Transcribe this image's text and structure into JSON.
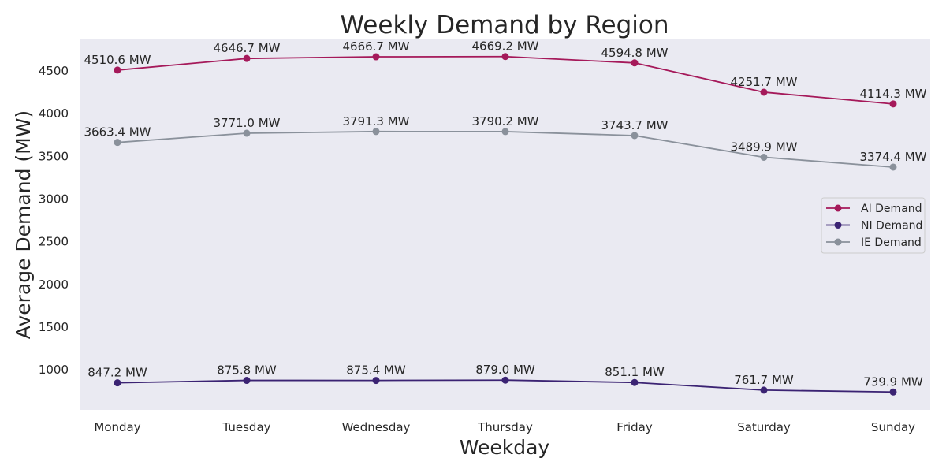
{
  "chart_data": {
    "type": "line",
    "title": "Weekly Demand by Region",
    "xlabel": "Weekday",
    "ylabel": "Average Demand (MW)",
    "categories": [
      "Monday",
      "Tuesday",
      "Wednesday",
      "Thursday",
      "Friday",
      "Saturday",
      "Sunday"
    ],
    "yticks": [
      1000,
      1500,
      2000,
      2500,
      3000,
      3500,
      4000,
      4500
    ],
    "ylim": [
      530,
      4870
    ],
    "grid": false,
    "legend_position": "center-right",
    "value_label_suffix": " MW",
    "series": [
      {
        "name": "AI Demand",
        "color": "#a5195a",
        "values": [
          4510.6,
          4646.7,
          4666.7,
          4669.2,
          4594.8,
          4251.7,
          4114.3
        ]
      },
      {
        "name": "NI Demand",
        "color": "#3b2373",
        "values": [
          847.2,
          875.8,
          875.4,
          879.0,
          851.1,
          761.7,
          739.9
        ]
      },
      {
        "name": "IE Demand",
        "color": "#8a919b",
        "values": [
          3663.4,
          3771.0,
          3791.3,
          3790.2,
          3743.7,
          3489.9,
          3374.4
        ]
      }
    ],
    "background_color": "#eaeaf2"
  }
}
